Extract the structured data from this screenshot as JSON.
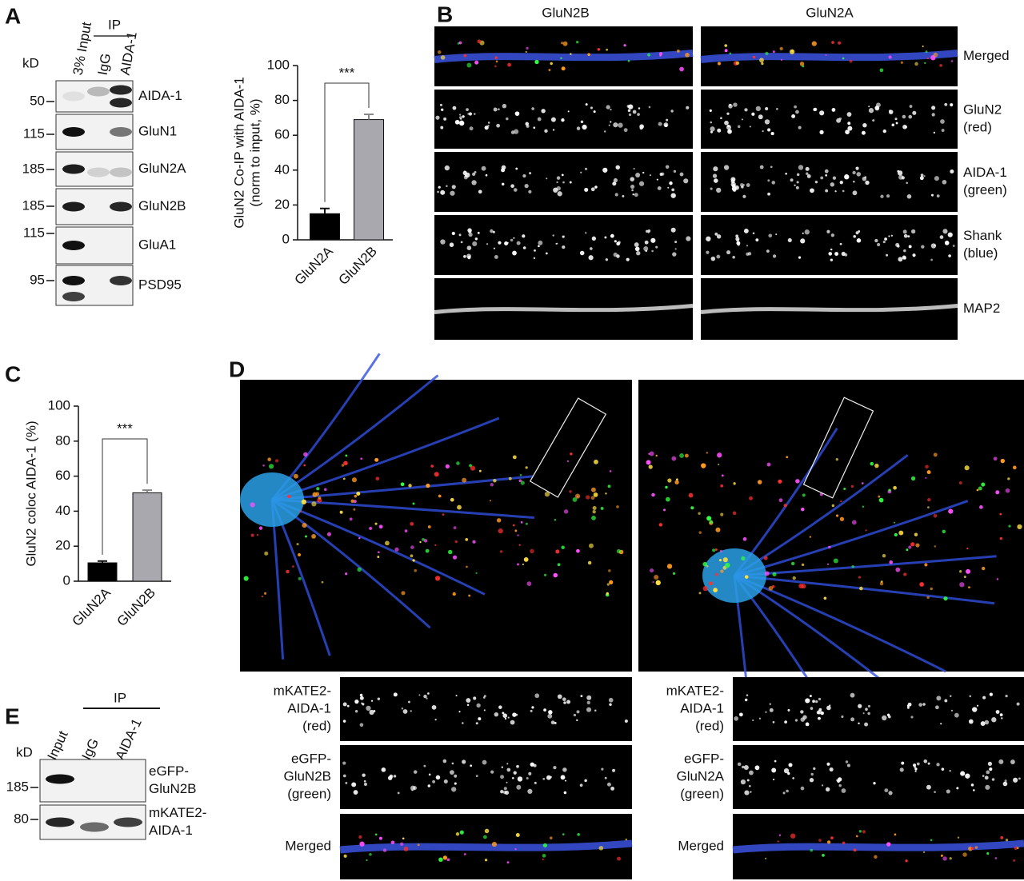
{
  "panel_labels": [
    "A",
    "B",
    "C",
    "D",
    "E"
  ],
  "chart_data": [
    {
      "type": "bar",
      "ylabel": [
        "GluN2 Co-IP with AIDA-1",
        "(norm to input, %)"
      ],
      "categories": [
        "GluN2A",
        "GluN2B"
      ],
      "values": [
        15,
        69
      ],
      "errors": [
        3,
        3
      ],
      "colors": [
        "#000000",
        "#a8a8ae"
      ],
      "ylim": [
        0,
        100
      ],
      "yticks": [
        0,
        20,
        40,
        60,
        80,
        100
      ],
      "significance": "***"
    },
    {
      "type": "bar",
      "ylabel": [
        "GluN2 coloc AIDA-1 (%)"
      ],
      "categories": [
        "GluN2A",
        "GluN2B"
      ],
      "values": [
        10.5,
        50.5
      ],
      "errors": [
        1,
        1.5
      ],
      "colors": [
        "#000000",
        "#a8a8ae"
      ],
      "ylim": [
        0,
        100
      ],
      "yticks": [
        0,
        20,
        40,
        60,
        80,
        100
      ],
      "significance": "***"
    }
  ],
  "blot_A": {
    "kd": "kD",
    "lanes": [
      "3% Input",
      "IgG",
      "AIDA-1"
    ],
    "ip": "IP",
    "rows": [
      {
        "marker": 50,
        "protein": "AIDA-1"
      },
      {
        "marker": 115,
        "protein": "GluN1"
      },
      {
        "marker": 185,
        "protein": "GluN2A"
      },
      {
        "marker": 185,
        "protein": "GluN2B"
      },
      {
        "marker": 115,
        "protein": "GluA1"
      },
      {
        "marker": 95,
        "protein": "PSD95"
      }
    ]
  },
  "panel_B": {
    "columns": [
      "GluN2B",
      "GluN2A"
    ],
    "rows": [
      [
        "Merged"
      ],
      [
        "GluN2",
        "(red)"
      ],
      [
        "AIDA-1",
        "(green)"
      ],
      [
        "Shank",
        "(blue)"
      ],
      [
        "MAP2"
      ]
    ]
  },
  "panel_D": {
    "left_rows": [
      [
        "mKATE2-",
        "AIDA-1",
        "(red)"
      ],
      [
        "eGFP-",
        "GluN2B",
        "(green)"
      ],
      [
        "Merged"
      ]
    ],
    "right_rows": [
      [
        "mKATE2-",
        "AIDA-1",
        "(red)"
      ],
      [
        "eGFP-",
        "GluN2A",
        "(green)"
      ],
      [
        "Merged"
      ]
    ]
  },
  "blot_E": {
    "kd": "kD",
    "lanes": [
      "Input",
      "IgG",
      "AIDA-1"
    ],
    "ip": "IP",
    "rows": [
      {
        "marker": 185,
        "protein": [
          "eGFP-",
          "GluN2B"
        ]
      },
      {
        "marker": 80,
        "protein": [
          "mKATE2-",
          "AIDA-1"
        ]
      }
    ]
  }
}
